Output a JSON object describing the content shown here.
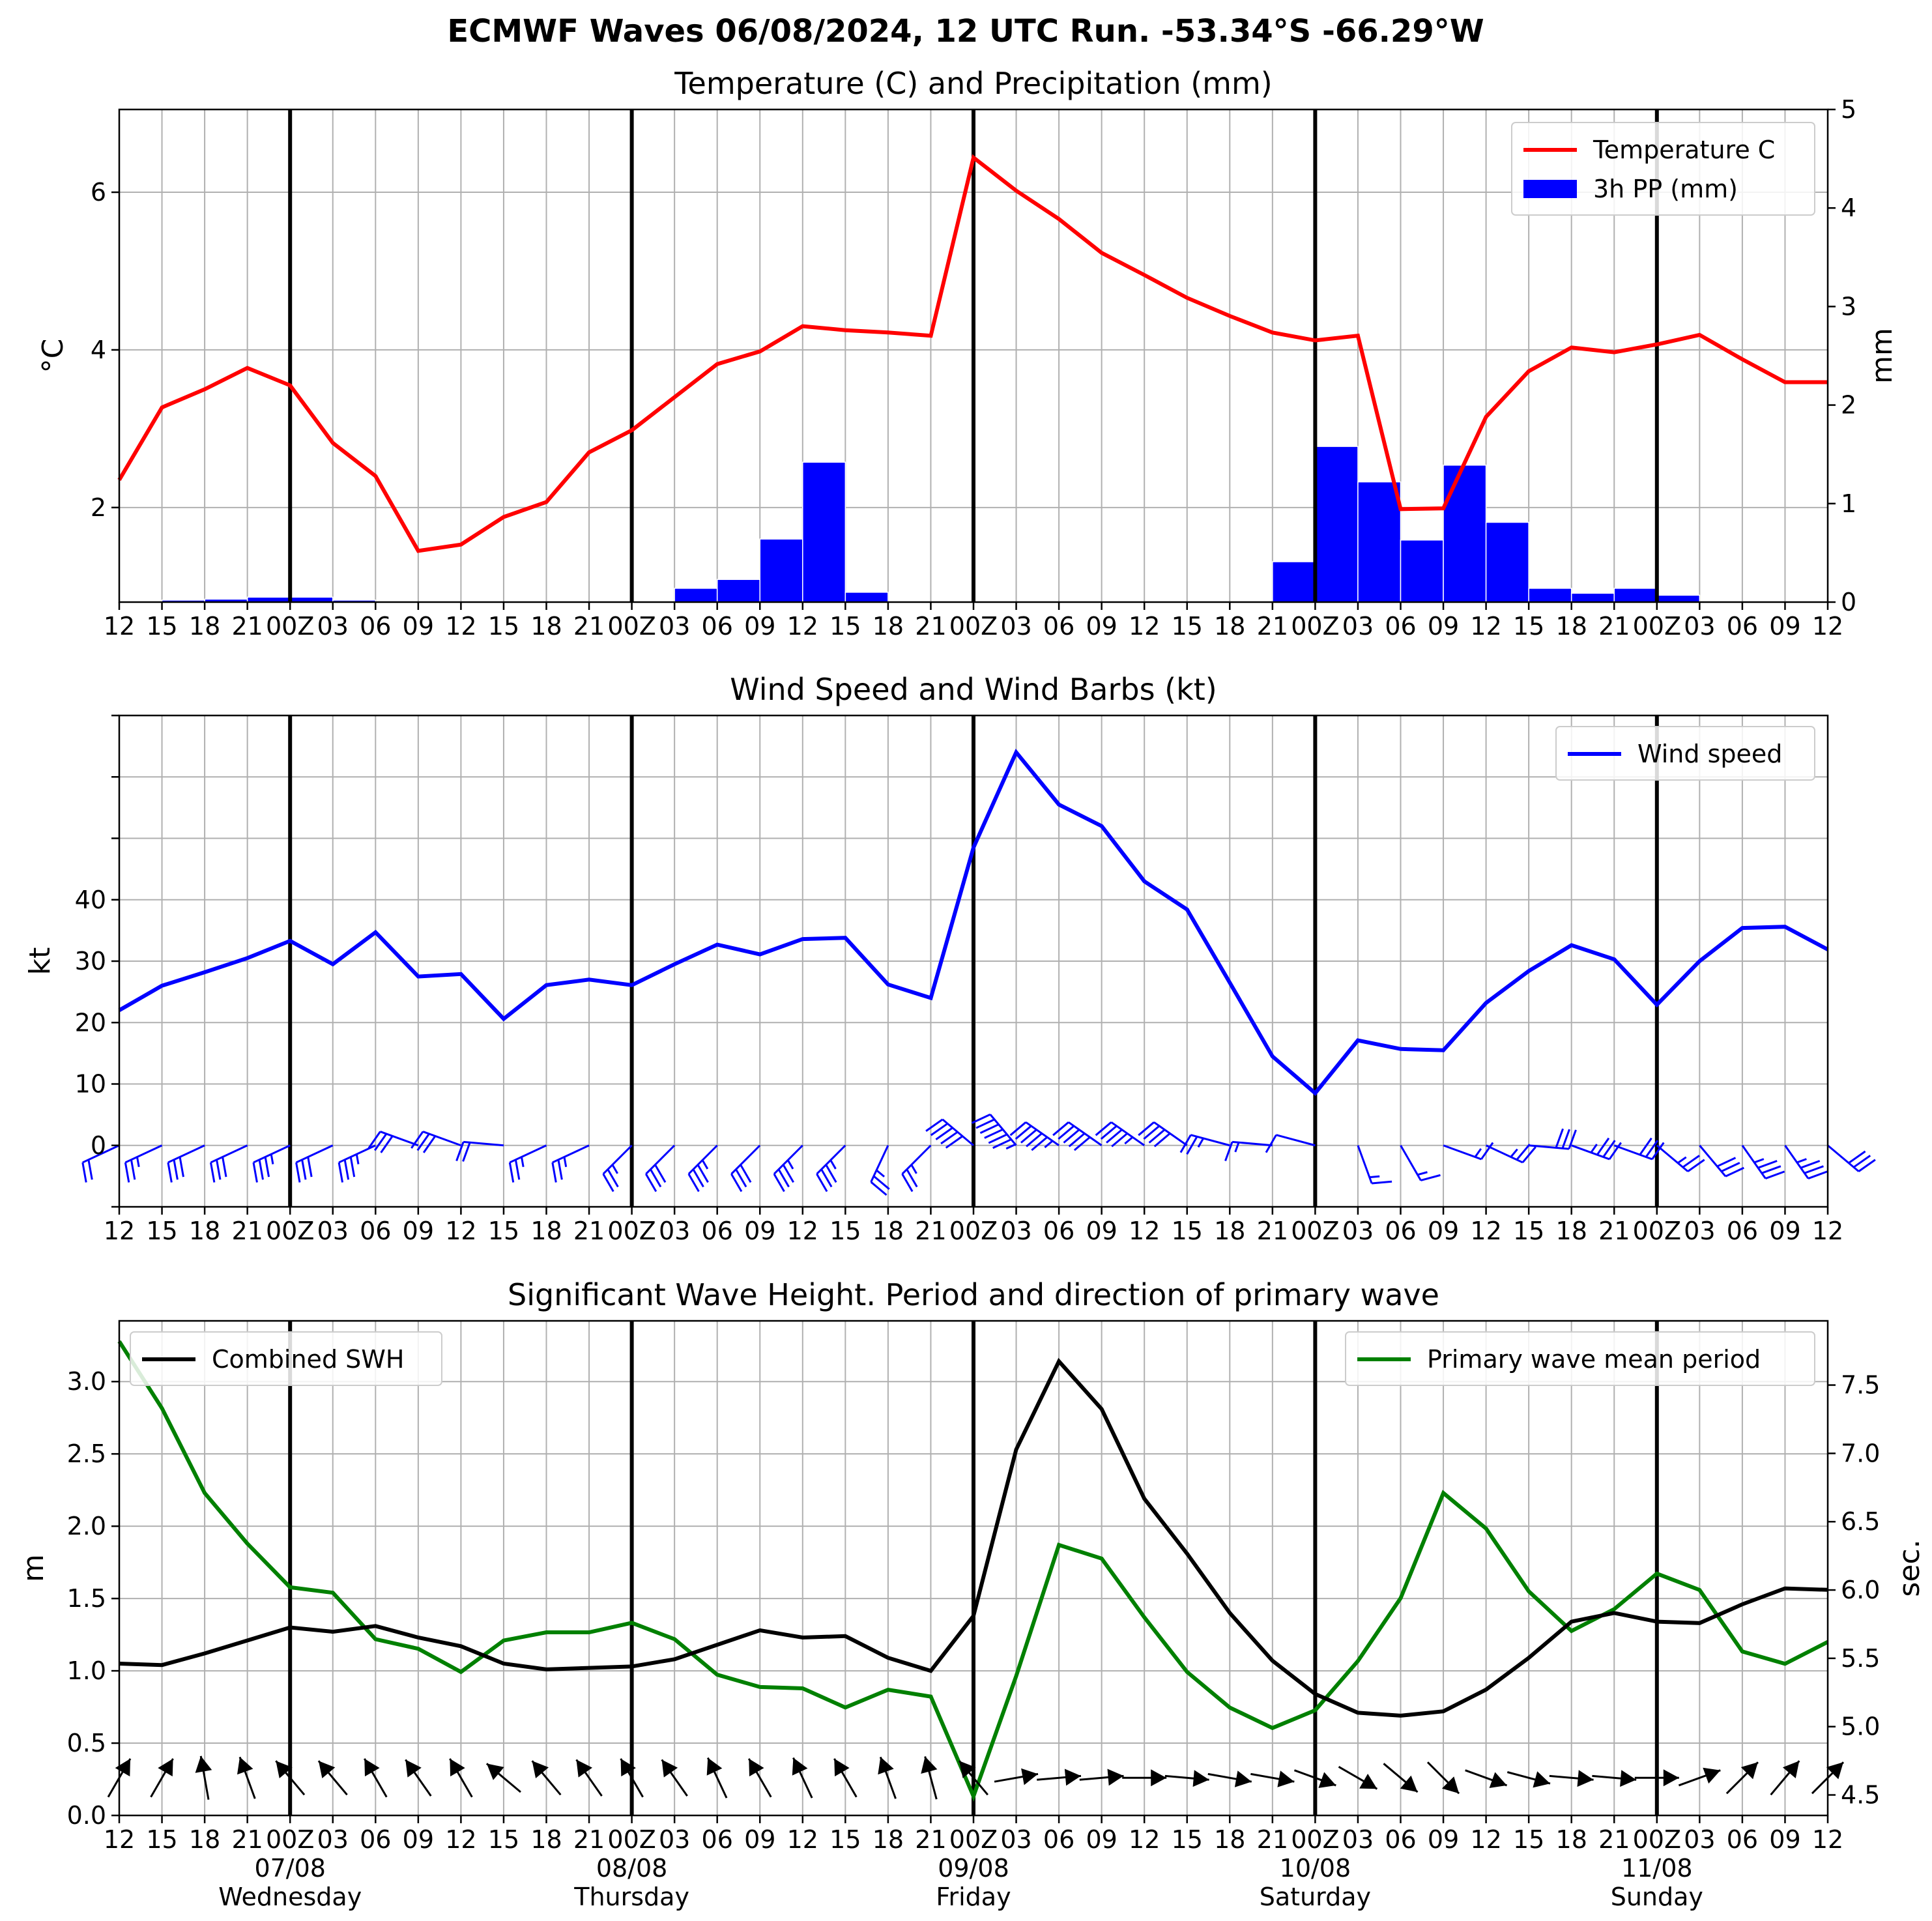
{
  "title": "ECMWF Waves 06/08/2024, 12 UTC Run. -53.34°S -66.29°W",
  "colors": {
    "temperature": "#ff0000",
    "precip": "#0000ff",
    "wind": "#0000ff",
    "swh": "#000000",
    "period": "#008000",
    "arrows": "#000000"
  },
  "x_ticks": [
    "12",
    "15",
    "18",
    "21",
    "00Z",
    "03",
    "06",
    "09",
    "12",
    "15",
    "18",
    "21",
    "00Z",
    "03",
    "06",
    "09",
    "12",
    "15",
    "18",
    "21",
    "00Z",
    "03",
    "06",
    "09",
    "12",
    "15",
    "18",
    "21",
    "00Z",
    "03",
    "06",
    "09",
    "12",
    "15",
    "18",
    "21",
    "00Z",
    "03",
    "06",
    "09",
    "12"
  ],
  "day_labels": [
    {
      "date": "07/08",
      "day": "Wednesday"
    },
    {
      "date": "08/08",
      "day": "Thursday"
    },
    {
      "date": "09/08",
      "day": "Friday"
    },
    {
      "date": "10/08",
      "day": "Saturday"
    },
    {
      "date": "11/08",
      "day": "Sunday"
    }
  ],
  "chart_data": [
    {
      "type": "line",
      "title": "Temperature (C) and Precipitation (mm)",
      "ylabel": "°C",
      "ylabel_right": "mm",
      "ylim": [
        0.8,
        7.05
      ],
      "ylim_right": [
        0,
        5
      ],
      "yticks": [
        2,
        4,
        6
      ],
      "yticks_right": [
        0,
        1,
        2,
        3,
        4,
        5
      ],
      "legend": "top-right",
      "grid": true,
      "series": [
        {
          "name": "Temperature C",
          "type": "line",
          "axis": "left",
          "values": [
            2.35,
            3.27,
            3.5,
            3.77,
            3.55,
            2.82,
            2.4,
            1.45,
            1.53,
            1.88,
            2.07,
            2.7,
            2.98,
            3.4,
            3.82,
            3.98,
            4.3,
            4.25,
            4.22,
            4.18,
            6.44,
            6.02,
            5.66,
            5.23,
            4.95,
            4.66,
            4.43,
            4.22,
            4.12,
            4.18,
            1.98,
            1.99,
            3.15,
            3.73,
            4.03,
            3.97,
            4.07,
            4.19,
            3.88,
            3.59,
            3.59
          ]
        },
        {
          "name": "3h PP (mm)",
          "type": "bar",
          "axis": "right",
          "values": [
            0,
            0.01,
            0.02,
            0.03,
            0.05,
            0.05,
            0.02,
            0,
            0,
            0,
            0,
            0,
            0,
            0,
            0.14,
            0.23,
            0.64,
            1.42,
            0.1,
            0,
            0,
            0,
            0,
            0,
            0,
            0,
            0,
            0,
            0.41,
            1.58,
            1.22,
            0.63,
            1.39,
            0.81,
            0.14,
            0.09,
            0.14,
            0.07,
            0,
            0,
            0
          ]
        }
      ]
    },
    {
      "type": "line",
      "title": "Wind Speed and Wind Barbs (kt)",
      "ylabel": "kt",
      "ylim": [
        -10,
        70
      ],
      "yticks": [
        0,
        10,
        20,
        30,
        40
      ],
      "legend": "top-right",
      "grid": true,
      "series": [
        {
          "name": "Wind speed",
          "values": [
            22,
            26,
            28.2,
            30.5,
            33.3,
            29.5,
            34.7,
            27.5,
            27.9,
            20.6,
            26.1,
            27,
            26.1,
            29.5,
            32.7,
            31.1,
            33.6,
            33.8,
            26.2,
            24,
            48.5,
            64,
            55.5,
            52,
            43,
            38.4,
            26.5,
            14.5,
            8.5,
            17.1,
            15.7,
            15.5,
            23.2,
            28.4,
            32.6,
            30.3,
            22.9,
            30,
            35.4,
            35.6,
            31.9
          ]
        }
      ],
      "barb_directions_deg": [
        245,
        245,
        245,
        245,
        245,
        245,
        245,
        290,
        290,
        275,
        245,
        245,
        225,
        225,
        225,
        225,
        225,
        225,
        205,
        225,
        310,
        320,
        305,
        305,
        305,
        305,
        285,
        275,
        285,
        160,
        150,
        110,
        115,
        95,
        110,
        110,
        130,
        140,
        145,
        145,
        130
      ]
    },
    {
      "type": "line",
      "title": "Significant Wave Height. Period and direction of primary wave",
      "ylabel": "m",
      "ylabel_right": "sec.",
      "ylim": [
        0,
        3.42
      ],
      "ylim_right": [
        4.35,
        7.97
      ],
      "yticks": [
        0.0,
        0.5,
        1.0,
        1.5,
        2.0,
        2.5,
        3.0
      ],
      "yticks_right": [
        4.5,
        5.0,
        5.5,
        6.0,
        6.5,
        7.0,
        7.5
      ],
      "grid": true,
      "series": [
        {
          "name": "Combined SWH",
          "axis": "left",
          "legend": "top-left",
          "values": [
            1.05,
            1.04,
            1.12,
            1.21,
            1.3,
            1.27,
            1.31,
            1.23,
            1.17,
            1.05,
            1.01,
            1.02,
            1.03,
            1.08,
            1.18,
            1.28,
            1.23,
            1.24,
            1.09,
            1.0,
            1.38,
            2.53,
            3.14,
            2.81,
            2.19,
            1.81,
            1.4,
            1.07,
            0.84,
            0.71,
            0.69,
            0.72,
            0.87,
            1.09,
            1.34,
            1.4,
            1.34,
            1.33,
            1.46,
            1.57,
            1.56
          ]
        },
        {
          "name": "Primary wave mean period",
          "axis": "right",
          "legend": "top-right",
          "values": [
            7.82,
            7.33,
            6.71,
            6.34,
            6.02,
            5.98,
            5.64,
            5.57,
            5.4,
            5.63,
            5.69,
            5.69,
            5.76,
            5.64,
            5.38,
            5.29,
            5.28,
            5.14,
            5.27,
            5.22,
            4.49,
            5.37,
            6.33,
            6.23,
            5.8,
            5.4,
            5.14,
            4.99,
            5.12,
            5.48,
            5.94,
            6.71,
            6.45,
            5.99,
            5.7,
            5.86,
            6.12,
            6.0,
            5.55,
            5.46,
            5.62
          ]
        }
      ],
      "arrow_directions_deg": [
        210,
        210,
        170,
        160,
        140,
        140,
        150,
        145,
        150,
        130,
        140,
        145,
        150,
        145,
        155,
        150,
        155,
        150,
        160,
        165,
        140,
        260,
        265,
        265,
        270,
        275,
        280,
        280,
        290,
        300,
        310,
        315,
        290,
        285,
        275,
        275,
        270,
        250,
        225,
        220,
        225
      ]
    }
  ]
}
